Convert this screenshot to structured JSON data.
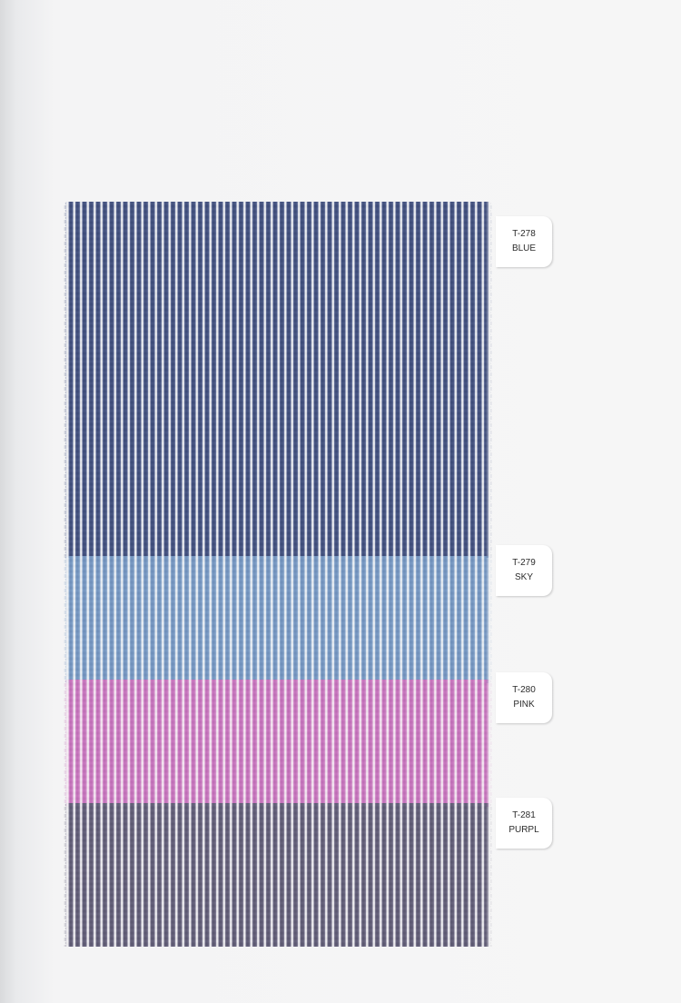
{
  "swatches": [
    {
      "code": "T-278",
      "name": "BLUE",
      "stripe_color": "#3b4a78"
    },
    {
      "code": "T-279",
      "name": "SKY",
      "stripe_color": "#6e90bd"
    },
    {
      "code": "T-280",
      "name": "PINK",
      "stripe_color": "#c26ab8"
    },
    {
      "code": "T-281",
      "name": "PURPL",
      "stripe_color": "#5a5670"
    }
  ]
}
